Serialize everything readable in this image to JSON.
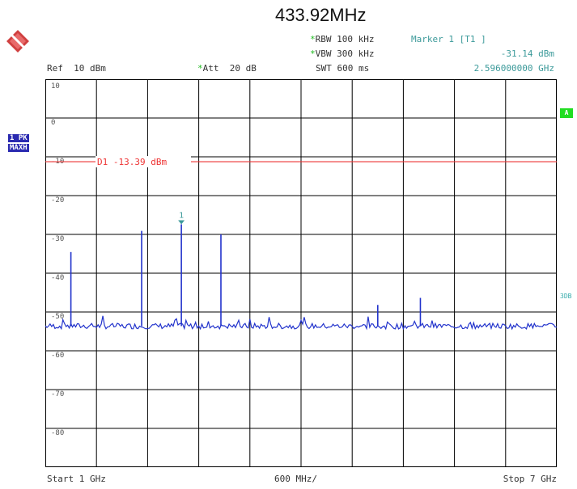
{
  "title": "433.92MHz",
  "logo_icon": "rohde-schwarz-logo-icon",
  "settings": {
    "rbw_label": "RBW",
    "rbw_value": "100 kHz",
    "vbw_label": "VBW",
    "vbw_value": "300 kHz",
    "swt_label": "SWT",
    "swt_value": "600 ms",
    "ref_label": "Ref",
    "ref_value": "10 dBm",
    "att_label": "Att",
    "att_value": "20 dB",
    "star": "*"
  },
  "marker": {
    "label": "Marker 1 [T1 ]",
    "level": "-31.14 dBm",
    "freq": "2.596000000 GHz",
    "tag": "1"
  },
  "left_badges": {
    "trace": "1 PK",
    "mode": "MAXH"
  },
  "right_badges": {
    "a": "A",
    "db": "3DB"
  },
  "display_line": {
    "label": "D1 -13.39 dBm",
    "level_dbm": -13.39,
    "color": "#ee3333"
  },
  "bottom": {
    "start": "Start 1 GHz",
    "span_div": "600 MHz/",
    "stop": "Stop 7 GHz"
  },
  "colors": {
    "trace": "#2233cc",
    "grid": "#000000",
    "marker": "#3c9a9a"
  },
  "chart_data": {
    "type": "line",
    "x_range_ghz": [
      1,
      7
    ],
    "y_range_dbm": [
      -100,
      10
    ],
    "y_ticks": [
      "10",
      "0",
      "-10",
      "-20",
      "-30",
      "-40",
      "-50",
      "-60",
      "-70",
      "-80",
      "-90"
    ],
    "noise_floor_dbm": -60,
    "peaks": [
      {
        "freq_ghz": 1.3,
        "level_dbm": -39
      },
      {
        "freq_ghz": 2.13,
        "level_dbm": -33
      },
      {
        "freq_ghz": 2.596,
        "level_dbm": -31.14
      },
      {
        "freq_ghz": 3.06,
        "level_dbm": -34
      },
      {
        "freq_ghz": 4.9,
        "level_dbm": -54
      },
      {
        "freq_ghz": 5.4,
        "level_dbm": -52
      }
    ]
  }
}
